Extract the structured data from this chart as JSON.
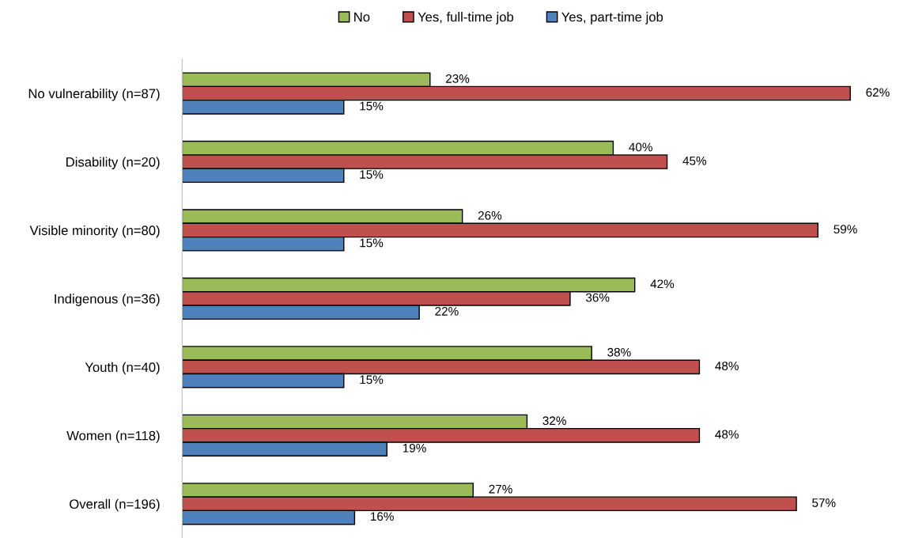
{
  "chart_data": {
    "type": "bar",
    "orientation": "horizontal",
    "legend": "top",
    "categories": [
      "No vulnerability (n=87)",
      "Disability (n=20)",
      "Visible minority (n=80)",
      "Indigenous (n=36)",
      "Youth (n=40)",
      "Women (n=118)",
      "Overall (n=196)"
    ],
    "series": [
      {
        "name": "No",
        "color": "#9bbb59",
        "values": [
          23,
          40,
          26,
          42,
          38,
          32,
          27
        ],
        "value_labels": [
          "23%",
          "40%",
          "26%",
          "42%",
          "38%",
          "32%",
          "27%"
        ]
      },
      {
        "name": "Yes, full-time job",
        "color": "#c0504d",
        "values": [
          62,
          45,
          59,
          36,
          48,
          48,
          57
        ],
        "value_labels": [
          "62%",
          "45%",
          "59%",
          "36%",
          "48%",
          "48%",
          "57%"
        ]
      },
      {
        "name": "Yes, part-time job",
        "color": "#4f81bd",
        "values": [
          15,
          15,
          15,
          22,
          15,
          19,
          16
        ],
        "value_labels": [
          "15%",
          "15%",
          "15%",
          "22%",
          "15%",
          "19%",
          "16%"
        ]
      }
    ]
  }
}
